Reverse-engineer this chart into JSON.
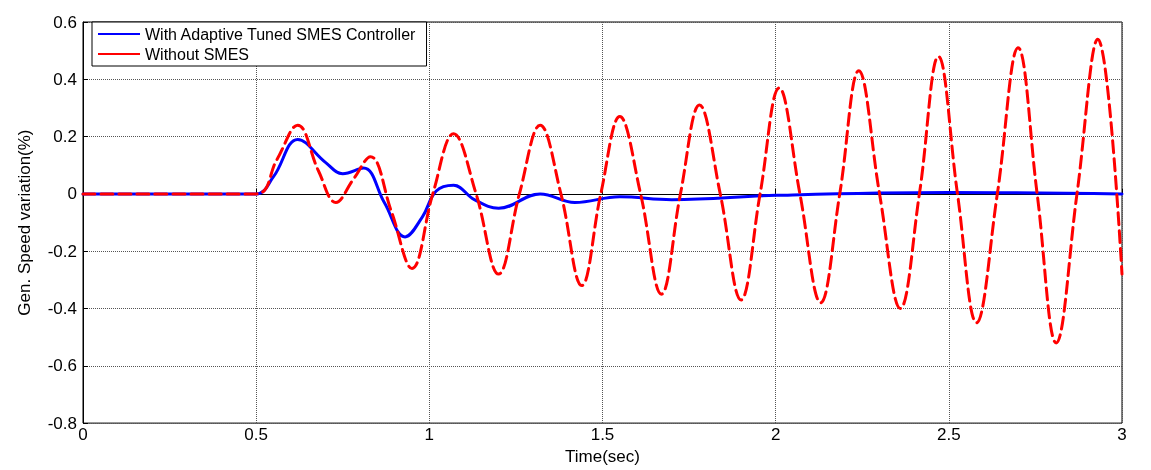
{
  "chart_data": {
    "type": "line",
    "xlabel": "Time(sec)",
    "ylabel": "Gen. Speed variation(%)",
    "xlim": [
      0,
      3
    ],
    "xticks": [
      0,
      0.5,
      1,
      1.5,
      2,
      2.5,
      3
    ],
    "ylim": [
      -0.8,
      0.6
    ],
    "yticks": [
      -0.8,
      -0.6,
      -0.4,
      -0.2,
      0,
      0.2,
      0.4,
      0.6
    ],
    "grid": true,
    "legend": "top left",
    "marker": "none",
    "series": [
      {
        "name": "With Adaptive Tuned SMES Controller",
        "color": "#0000ff",
        "line_style": "solid",
        "x": [
          0,
          0.5,
          0.55,
          0.62,
          0.7,
          0.75,
          0.81,
          0.87,
          0.93,
          0.98,
          1.02,
          1.07,
          1.13,
          1.2,
          1.32,
          1.42,
          1.55,
          1.7,
          2.0,
          2.5,
          3.0
        ],
        "values": [
          0,
          0,
          0.06,
          0.19,
          0.11,
          0.07,
          0.09,
          -0.03,
          -0.15,
          -0.08,
          0.01,
          0.03,
          -0.02,
          -0.05,
          0.0,
          -0.03,
          -0.01,
          -0.02,
          -0.005,
          0.005,
          0
        ]
      },
      {
        "name": "Without SMES",
        "color": "#ff0000",
        "line_style": "dashed",
        "x": [
          0,
          0.5,
          0.56,
          0.62,
          0.68,
          0.73,
          0.78,
          0.83,
          0.89,
          0.95,
          1.01,
          1.07,
          1.135,
          1.2,
          1.26,
          1.32,
          1.38,
          1.44,
          1.495,
          1.55,
          1.61,
          1.67,
          1.725,
          1.78,
          1.84,
          1.9,
          1.955,
          2.01,
          2.07,
          2.13,
          2.185,
          2.24,
          2.3,
          2.36,
          2.415,
          2.47,
          2.525,
          2.58,
          2.64,
          2.7,
          2.755,
          2.81,
          2.87,
          2.93,
          3.0
        ],
        "values": [
          0,
          0,
          0.12,
          0.24,
          0.08,
          -0.03,
          0.05,
          0.13,
          -0.06,
          -0.26,
          0,
          0.21,
          0,
          -0.28,
          0,
          0.24,
          0,
          -0.32,
          0,
          0.27,
          0,
          -0.35,
          0,
          0.31,
          0,
          -0.37,
          0,
          0.37,
          0,
          -0.38,
          0,
          0.43,
          0,
          -0.4,
          0,
          0.48,
          0,
          -0.45,
          0,
          0.51,
          0,
          -0.52,
          0,
          0.54,
          -0.28
        ]
      }
    ]
  }
}
